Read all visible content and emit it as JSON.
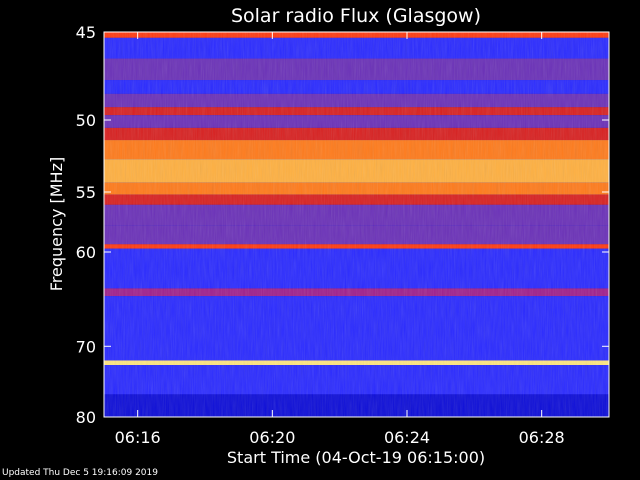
{
  "page": {
    "footer": "Updated Thu Dec  5 19:16:09 2019"
  },
  "chart_data": {
    "type": "heatmap",
    "title": "Solar radio Flux (Glasgow)",
    "xlabel": "Start Time (04-Oct-19 06:15:00)",
    "ylabel": "Frequency [MHz]",
    "xlim": [
      "06:15:00",
      "06:30:00"
    ],
    "ylim": [
      45,
      80
    ],
    "x_ticks": [
      {
        "value": "06:16",
        "minutes": 1
      },
      {
        "value": "06:20",
        "minutes": 5
      },
      {
        "value": "06:24",
        "minutes": 9
      },
      {
        "value": "06:28",
        "minutes": 13
      }
    ],
    "y_ticks": [
      45,
      50,
      55,
      60,
      70,
      80
    ],
    "y_scale": "reciprocal",
    "grid": false,
    "colormap": [
      "#00008c",
      "#0c0cd8",
      "#2a2aff",
      "#6a30b8",
      "#a0208c",
      "#d82020",
      "#ff3a10",
      "#ff7a1a",
      "#ffb040",
      "#ffe680",
      "#ffffff"
    ],
    "bands": [
      {
        "freq_from": 45.0,
        "freq_to": 45.3,
        "level": 6
      },
      {
        "freq_from": 45.3,
        "freq_to": 46.4,
        "level": 2
      },
      {
        "freq_from": 46.4,
        "freq_to": 47.6,
        "level": 3
      },
      {
        "freq_from": 47.6,
        "freq_to": 48.4,
        "level": 2
      },
      {
        "freq_from": 48.4,
        "freq_to": 49.2,
        "level": 3
      },
      {
        "freq_from": 49.2,
        "freq_to": 49.7,
        "level": 5
      },
      {
        "freq_from": 49.7,
        "freq_to": 50.5,
        "level": 3
      },
      {
        "freq_from": 50.5,
        "freq_to": 51.3,
        "level": 5
      },
      {
        "freq_from": 51.3,
        "freq_to": 52.6,
        "level": 7
      },
      {
        "freq_from": 52.6,
        "freq_to": 54.3,
        "level": 8
      },
      {
        "freq_from": 54.3,
        "freq_to": 55.2,
        "level": 7
      },
      {
        "freq_from": 55.2,
        "freq_to": 56.0,
        "level": 5
      },
      {
        "freq_from": 56.0,
        "freq_to": 57.7,
        "level": 3
      },
      {
        "freq_from": 57.7,
        "freq_to": 59.3,
        "level": 3
      },
      {
        "freq_from": 59.3,
        "freq_to": 59.7,
        "level": 6
      },
      {
        "freq_from": 59.7,
        "freq_to": 63.5,
        "level": 2
      },
      {
        "freq_from": 63.5,
        "freq_to": 64.3,
        "level": 4
      },
      {
        "freq_from": 64.3,
        "freq_to": 71.8,
        "level": 2
      },
      {
        "freq_from": 71.8,
        "freq_to": 72.4,
        "level": 9
      },
      {
        "freq_from": 72.4,
        "freq_to": 76.5,
        "level": 2
      },
      {
        "freq_from": 76.5,
        "freq_to": 80.0,
        "level": 1
      }
    ]
  }
}
